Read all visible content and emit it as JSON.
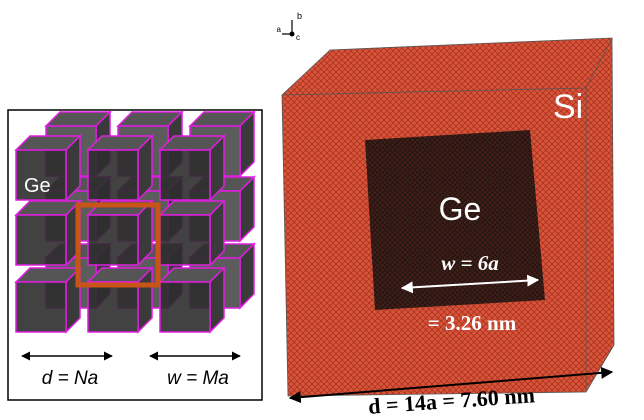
{
  "axes": {
    "b": "b",
    "a": "a",
    "c": "c"
  },
  "left_panel": {
    "label": "Ge",
    "d_label": "d = Na",
    "w_label": "w = Ma"
  },
  "right_panel": {
    "matrix_label": "Si",
    "core_label": "Ge",
    "w_label": "w = 6a",
    "w_value": "= 3.26 nm",
    "d_label": "d = 14a = 7.60 nm"
  }
}
